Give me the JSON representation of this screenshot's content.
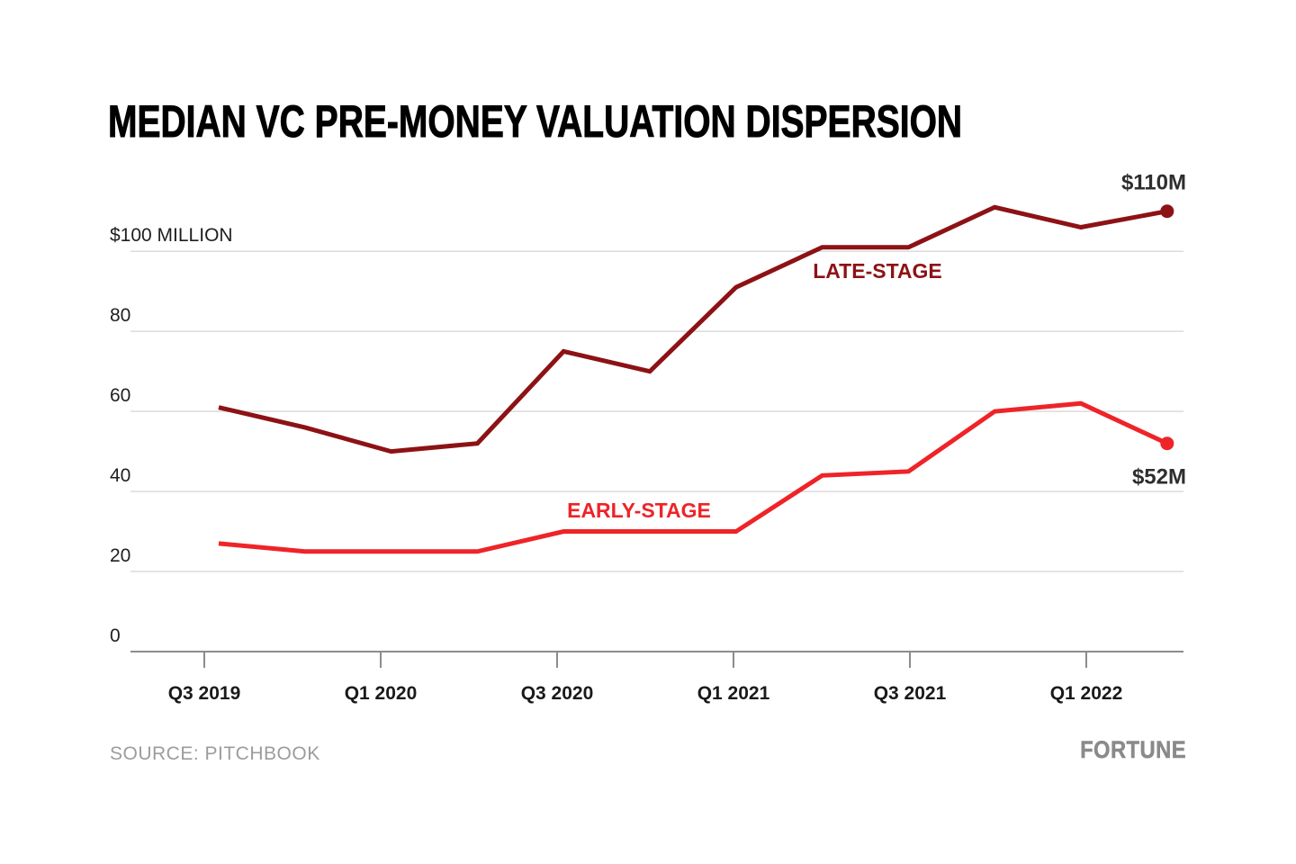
{
  "title": "MEDIAN VC PRE-MONEY VALUATION DISPERSION",
  "footer": {
    "source": "SOURCE: PITCHBOOK",
    "brand": "FORTUNE"
  },
  "colors": {
    "late_stage": "#8d1215",
    "early_stage": "#ee2428",
    "gridline": "#dbdbdb",
    "axis": "#8c8c8c",
    "end_label_text": "#2e2e2e"
  },
  "chart_data": {
    "type": "line",
    "title": "MEDIAN VC PRE-MONEY VALUATION DISPERSION",
    "categories": [
      "Q3 2019",
      "Q4 2019",
      "Q1 2020",
      "Q2 2020",
      "Q3 2020",
      "Q4 2020",
      "Q1 2021",
      "Q2 2021",
      "Q3 2021",
      "Q4 2021",
      "Q1 2022",
      "Q2 2022"
    ],
    "x_tick_labels": [
      "Q3 2019",
      "Q1 2020",
      "Q3 2020",
      "Q1 2021",
      "Q3 2021",
      "Q1 2022"
    ],
    "y_ticks": [
      0,
      20,
      40,
      60,
      80,
      100
    ],
    "y_tick_labels": [
      "0",
      "20",
      "40",
      "60",
      "80",
      "$100 MILLION"
    ],
    "ylim": [
      0,
      118
    ],
    "grid": "horizontal",
    "legend": "inline-labels",
    "unit": "USD millions",
    "series": [
      {
        "name": "LATE-STAGE",
        "color": "#8d1215",
        "values": [
          61,
          56,
          50,
          52,
          75,
          70,
          91,
          101,
          101,
          111,
          106,
          110
        ],
        "end_label": "$110M"
      },
      {
        "name": "EARLY-STAGE",
        "color": "#ee2428",
        "values": [
          27,
          25,
          25,
          25,
          30,
          30,
          30,
          44,
          45,
          60,
          62,
          52
        ],
        "end_label": "$52M"
      }
    ]
  }
}
